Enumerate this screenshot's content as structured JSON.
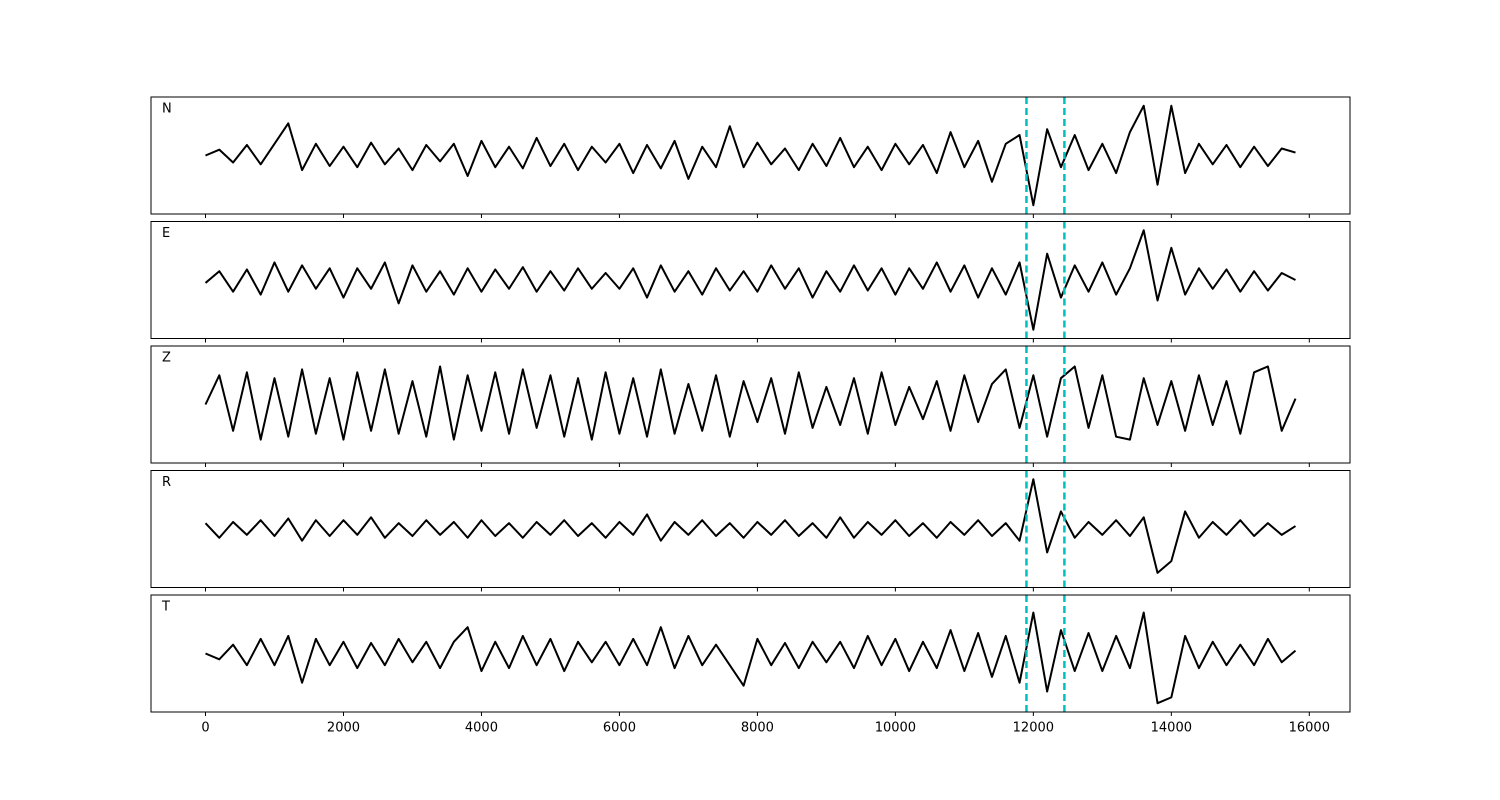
{
  "chart_data": [
    {
      "type": "line",
      "title": "N",
      "color": "#000000",
      "vline_color": "#00bfbf",
      "vlines": [
        11900,
        12450
      ],
      "xlim": [
        -790,
        16590
      ],
      "ylim": [
        -1,
        1
      ],
      "xticks": [
        0,
        2000,
        4000,
        6000,
        8000,
        10000,
        12000,
        14000,
        16000
      ],
      "x": [
        0,
        200,
        400,
        600,
        800,
        1000,
        1200,
        1400,
        1600,
        1800,
        2000,
        2200,
        2400,
        2600,
        2800,
        3000,
        3200,
        3400,
        3600,
        3800,
        4000,
        4200,
        4400,
        4600,
        4800,
        5000,
        5200,
        5400,
        5600,
        5800,
        6000,
        6200,
        6400,
        6600,
        6800,
        7000,
        7200,
        7400,
        7600,
        7800,
        8000,
        8200,
        8400,
        8600,
        8800,
        9000,
        9200,
        9400,
        9600,
        9800,
        10000,
        10200,
        10400,
        10600,
        10800,
        11000,
        11200,
        11400,
        11600,
        11800,
        12000,
        12200,
        12400,
        12600,
        12800,
        13000,
        13200,
        13400,
        13600,
        13800,
        14000,
        14200,
        14400,
        14600,
        14800,
        15000,
        15200,
        15400,
        15600,
        15800
      ],
      "values": [
        0.0,
        0.1,
        -0.12,
        0.18,
        -0.15,
        0.2,
        0.55,
        -0.25,
        0.2,
        -0.18,
        0.15,
        -0.2,
        0.22,
        -0.15,
        0.12,
        -0.25,
        0.18,
        -0.1,
        0.2,
        -0.35,
        0.25,
        -0.2,
        0.15,
        -0.22,
        0.3,
        -0.18,
        0.2,
        -0.25,
        0.15,
        -0.12,
        0.2,
        -0.3,
        0.18,
        -0.22,
        0.25,
        -0.4,
        0.15,
        -0.2,
        0.5,
        -0.2,
        0.22,
        -0.15,
        0.12,
        -0.25,
        0.2,
        -0.18,
        0.3,
        -0.2,
        0.15,
        -0.25,
        0.2,
        -0.15,
        0.18,
        -0.3,
        0.4,
        -0.2,
        0.25,
        -0.45,
        0.2,
        0.35,
        -0.85,
        0.45,
        -0.2,
        0.35,
        -0.25,
        0.2,
        -0.3,
        0.4,
        0.85,
        -0.5,
        0.85,
        -0.3,
        0.2,
        -0.15,
        0.18,
        -0.2,
        0.15,
        -0.18,
        0.12,
        0.05
      ]
    },
    {
      "type": "line",
      "title": "E",
      "color": "#000000",
      "vline_color": "#00bfbf",
      "vlines": [
        11900,
        12450
      ],
      "xlim": [
        -790,
        16590
      ],
      "ylim": [
        -1,
        1
      ],
      "xticks": [
        0,
        2000,
        4000,
        6000,
        8000,
        10000,
        12000,
        14000,
        16000
      ],
      "x": [
        0,
        200,
        400,
        600,
        800,
        1000,
        1200,
        1400,
        1600,
        1800,
        2000,
        2200,
        2400,
        2600,
        2800,
        3000,
        3200,
        3400,
        3600,
        3800,
        4000,
        4200,
        4400,
        4600,
        4800,
        5000,
        5200,
        5400,
        5600,
        5800,
        6000,
        6200,
        6400,
        6600,
        6800,
        7000,
        7200,
        7400,
        7600,
        7800,
        8000,
        8200,
        8400,
        8600,
        8800,
        9000,
        9200,
        9400,
        9600,
        9800,
        10000,
        10200,
        10400,
        10600,
        10800,
        11000,
        11200,
        11400,
        11600,
        11800,
        12000,
        12200,
        12400,
        12600,
        12800,
        13000,
        13200,
        13400,
        13600,
        13800,
        14000,
        14200,
        14400,
        14600,
        14800,
        15000,
        15200,
        15400,
        15600,
        15800
      ],
      "values": [
        -0.05,
        0.15,
        -0.2,
        0.18,
        -0.25,
        0.3,
        -0.2,
        0.25,
        -0.15,
        0.2,
        -0.3,
        0.2,
        -0.15,
        0.3,
        -0.4,
        0.25,
        -0.2,
        0.15,
        -0.25,
        0.2,
        -0.2,
        0.18,
        -0.15,
        0.22,
        -0.2,
        0.15,
        -0.18,
        0.2,
        -0.15,
        0.12,
        -0.15,
        0.2,
        -0.3,
        0.25,
        -0.2,
        0.15,
        -0.25,
        0.2,
        -0.18,
        0.15,
        -0.2,
        0.25,
        -0.15,
        0.2,
        -0.3,
        0.15,
        -0.2,
        0.25,
        -0.18,
        0.2,
        -0.25,
        0.2,
        -0.15,
        0.3,
        -0.2,
        0.25,
        -0.3,
        0.2,
        -0.25,
        0.3,
        -0.85,
        0.45,
        -0.3,
        0.25,
        -0.2,
        0.3,
        -0.25,
        0.2,
        0.85,
        -0.35,
        0.55,
        -0.25,
        0.2,
        -0.15,
        0.18,
        -0.2,
        0.15,
        -0.18,
        0.12,
        0.0
      ]
    },
    {
      "type": "line",
      "title": "Z",
      "color": "#000000",
      "vline_color": "#00bfbf",
      "vlines": [
        11900,
        12450
      ],
      "xlim": [
        -790,
        16590
      ],
      "ylim": [
        -1,
        1
      ],
      "xticks": [
        0,
        2000,
        4000,
        6000,
        8000,
        10000,
        12000,
        14000,
        16000
      ],
      "x": [
        0,
        200,
        400,
        600,
        800,
        1000,
        1200,
        1400,
        1600,
        1800,
        2000,
        2200,
        2400,
        2600,
        2800,
        3000,
        3200,
        3400,
        3600,
        3800,
        4000,
        4200,
        4400,
        4600,
        4800,
        5000,
        5200,
        5400,
        5600,
        5800,
        6000,
        6200,
        6400,
        6600,
        6800,
        7000,
        7200,
        7400,
        7600,
        7800,
        8000,
        8200,
        8400,
        8600,
        8800,
        9000,
        9200,
        9400,
        9600,
        9800,
        10000,
        10200,
        10400,
        10600,
        10800,
        11000,
        11200,
        11400,
        11600,
        11800,
        12000,
        12200,
        12400,
        12600,
        12800,
        13000,
        13200,
        13400,
        13600,
        13800,
        14000,
        14200,
        14400,
        14600,
        14800,
        15000,
        15200,
        15400,
        15600,
        15800
      ],
      "values": [
        0.0,
        0.5,
        -0.45,
        0.55,
        -0.6,
        0.45,
        -0.55,
        0.6,
        -0.5,
        0.45,
        -0.6,
        0.55,
        -0.45,
        0.6,
        -0.5,
        0.4,
        -0.55,
        0.65,
        -0.6,
        0.5,
        -0.45,
        0.55,
        -0.5,
        0.6,
        -0.4,
        0.5,
        -0.55,
        0.45,
        -0.6,
        0.55,
        -0.5,
        0.45,
        -0.55,
        0.6,
        -0.5,
        0.35,
        -0.45,
        0.5,
        -0.55,
        0.4,
        -0.3,
        0.45,
        -0.5,
        0.55,
        -0.4,
        0.3,
        -0.35,
        0.45,
        -0.5,
        0.55,
        -0.35,
        0.3,
        -0.25,
        0.4,
        -0.45,
        0.5,
        -0.3,
        0.35,
        0.6,
        -0.4,
        0.5,
        -0.55,
        0.45,
        0.65,
        -0.4,
        0.5,
        -0.55,
        -0.6,
        0.45,
        -0.35,
        0.4,
        -0.45,
        0.5,
        -0.35,
        0.4,
        -0.5,
        0.55,
        0.65,
        -0.45,
        0.1
      ]
    },
    {
      "type": "line",
      "title": "R",
      "color": "#000000",
      "vline_color": "#00bfbf",
      "vlines": [
        11900,
        12450
      ],
      "xlim": [
        -790,
        16590
      ],
      "ylim": [
        -1,
        1
      ],
      "xticks": [
        0,
        2000,
        4000,
        6000,
        8000,
        10000,
        12000,
        14000,
        16000
      ],
      "x": [
        0,
        200,
        400,
        600,
        800,
        1000,
        1200,
        1400,
        1600,
        1800,
        2000,
        2200,
        2400,
        2600,
        2800,
        3000,
        3200,
        3400,
        3600,
        3800,
        4000,
        4200,
        4400,
        4600,
        4800,
        5000,
        5200,
        5400,
        5600,
        5800,
        6000,
        6200,
        6400,
        6600,
        6800,
        7000,
        7200,
        7400,
        7600,
        7800,
        8000,
        8200,
        8400,
        8600,
        8800,
        9000,
        9200,
        9400,
        9600,
        9800,
        10000,
        10200,
        10400,
        10600,
        10800,
        11000,
        11200,
        11400,
        11600,
        11800,
        12000,
        12200,
        12400,
        12600,
        12800,
        13000,
        13200,
        13400,
        13600,
        13800,
        14000,
        14200,
        14400,
        14600,
        14800,
        15000,
        15200,
        15400,
        15600,
        15800
      ],
      "values": [
        0.1,
        -0.15,
        0.12,
        -0.1,
        0.15,
        -0.12,
        0.18,
        -0.2,
        0.15,
        -0.12,
        0.15,
        -0.1,
        0.2,
        -0.15,
        0.1,
        -0.12,
        0.15,
        -0.1,
        0.12,
        -0.15,
        0.15,
        -0.12,
        0.1,
        -0.15,
        0.12,
        -0.1,
        0.15,
        -0.12,
        0.1,
        -0.15,
        0.12,
        -0.1,
        0.25,
        -0.2,
        0.12,
        -0.1,
        0.15,
        -0.12,
        0.1,
        -0.15,
        0.12,
        -0.1,
        0.15,
        -0.12,
        0.1,
        -0.15,
        0.2,
        -0.15,
        0.12,
        -0.1,
        0.15,
        -0.12,
        0.1,
        -0.15,
        0.12,
        -0.1,
        0.15,
        -0.12,
        0.1,
        -0.2,
        0.85,
        -0.4,
        0.3,
        -0.15,
        0.12,
        -0.1,
        0.15,
        -0.12,
        0.2,
        -0.75,
        -0.55,
        0.3,
        -0.15,
        0.12,
        -0.1,
        0.15,
        -0.12,
        0.1,
        -0.1,
        0.05
      ]
    },
    {
      "type": "line",
      "title": "T",
      "color": "#000000",
      "vline_color": "#00bfbf",
      "vlines": [
        11900,
        12450
      ],
      "xlim": [
        -790,
        16590
      ],
      "ylim": [
        -1,
        1
      ],
      "xticks": [
        0,
        2000,
        4000,
        6000,
        8000,
        10000,
        12000,
        14000,
        16000
      ],
      "x": [
        0,
        200,
        400,
        600,
        800,
        1000,
        1200,
        1400,
        1600,
        1800,
        2000,
        2200,
        2400,
        2600,
        2800,
        3000,
        3200,
        3400,
        3600,
        3800,
        4000,
        4200,
        4400,
        4600,
        4800,
        5000,
        5200,
        5400,
        5600,
        5800,
        6000,
        6200,
        6400,
        6600,
        6800,
        7000,
        7200,
        7400,
        7600,
        7800,
        8000,
        8200,
        8400,
        8600,
        8800,
        9000,
        9200,
        9400,
        9600,
        9800,
        10000,
        10200,
        10400,
        10600,
        10800,
        11000,
        11200,
        11400,
        11600,
        11800,
        12000,
        12200,
        12400,
        12600,
        12800,
        13000,
        13200,
        13400,
        13600,
        13800,
        14000,
        14200,
        14400,
        14600,
        14800,
        15000,
        15200,
        15400,
        15600,
        15800
      ],
      "values": [
        0.0,
        -0.1,
        0.15,
        -0.2,
        0.25,
        -0.2,
        0.3,
        -0.5,
        0.25,
        -0.2,
        0.2,
        -0.25,
        0.18,
        -0.2,
        0.25,
        -0.15,
        0.2,
        -0.25,
        0.2,
        0.45,
        -0.3,
        0.2,
        -0.25,
        0.3,
        -0.2,
        0.25,
        -0.3,
        0.2,
        -0.15,
        0.2,
        -0.2,
        0.25,
        -0.2,
        0.45,
        -0.25,
        0.3,
        -0.2,
        0.15,
        -0.2,
        -0.55,
        0.25,
        -0.2,
        0.18,
        -0.25,
        0.2,
        -0.15,
        0.2,
        -0.25,
        0.3,
        -0.2,
        0.25,
        -0.3,
        0.2,
        -0.25,
        0.4,
        -0.3,
        0.35,
        -0.4,
        0.3,
        -0.5,
        0.7,
        -0.65,
        0.4,
        -0.3,
        0.35,
        -0.3,
        0.3,
        -0.25,
        0.7,
        -0.85,
        -0.75,
        0.3,
        -0.25,
        0.2,
        -0.2,
        0.15,
        -0.2,
        0.25,
        -0.15,
        0.05
      ]
    }
  ]
}
